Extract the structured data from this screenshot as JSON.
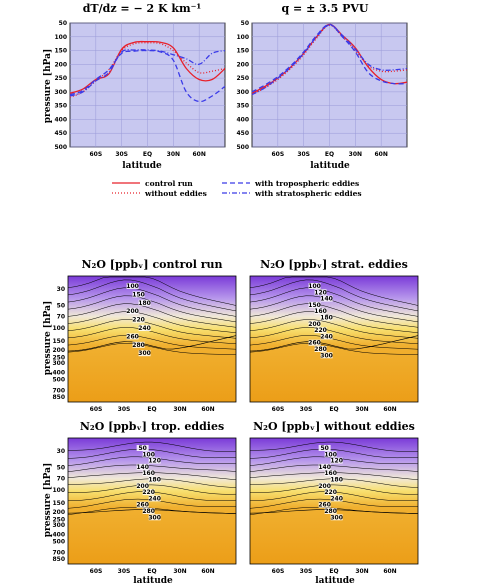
{
  "top_panels": [
    {
      "title": "dT/dz = − 2 K km⁻¹"
    },
    {
      "title": "q = ± 3.5 PVU"
    }
  ],
  "top_xlabel": "latitude",
  "top_ylabel": "pressure [hPa]",
  "top_yticks": [
    "50",
    "100",
    "150",
    "200",
    "250",
    "300",
    "350",
    "400",
    "450",
    "500"
  ],
  "top_xticks": [
    "60S",
    "30S",
    "EQ",
    "30N",
    "60N"
  ],
  "legend": [
    {
      "label": "control run",
      "color": "#e8202a",
      "dash": "solid"
    },
    {
      "label": "without eddies",
      "color": "#e8202a",
      "dash": "dot"
    },
    {
      "label": "with tropospheric eddies",
      "color": "#3a3ae8",
      "dash": "dash"
    },
    {
      "label": "with stratospheric eddies",
      "color": "#3a3ae8",
      "dash": "dashdot"
    }
  ],
  "bottom_panels": [
    {
      "title": "N₂O [ppbᵥ]  control run"
    },
    {
      "title": "N₂O [ppbᵥ] strat. eddies"
    },
    {
      "title": "N₂O [ppbᵥ]  trop. eddies"
    },
    {
      "title": "N₂O [ppbᵥ] without eddies"
    }
  ],
  "bottom_xlabel": "latitude",
  "bottom_ylabel": "pressure [hPa]",
  "bottom_yticks": [
    "30",
    "50",
    "70",
    "100",
    "150",
    "200",
    "250",
    "300",
    "400",
    "500",
    "700",
    "850"
  ],
  "bottom_xticks": [
    "60S",
    "30S",
    "EQ",
    "30N",
    "60N"
  ],
  "colors": {
    "panel_bg": "#c8c8f0",
    "grid": "#9a9ad8",
    "orange": "#f0a020",
    "purple": "#8a4ae0"
  },
  "chart_data": [
    {
      "type": "line",
      "title": "dT/dz = − 2 K km⁻¹",
      "xlabel": "latitude",
      "ylabel": "pressure [hPa]",
      "xlim": [
        -90,
        90
      ],
      "ylim": [
        500,
        50
      ],
      "x": [
        -90,
        -75,
        -60,
        -45,
        -30,
        -15,
        0,
        15,
        30,
        45,
        60,
        75,
        90
      ],
      "series": [
        {
          "name": "control run",
          "values": [
            305,
            290,
            255,
            235,
            145,
            120,
            118,
            120,
            140,
            215,
            255,
            255,
            215
          ]
        },
        {
          "name": "without eddies",
          "values": [
            320,
            300,
            260,
            220,
            150,
            125,
            122,
            125,
            150,
            195,
            230,
            225,
            215
          ]
        },
        {
          "name": "with tropospheric eddies",
          "values": [
            310,
            295,
            255,
            220,
            160,
            152,
            150,
            155,
            185,
            300,
            335,
            315,
            280
          ]
        },
        {
          "name": "with stratospheric eddies",
          "values": [
            315,
            300,
            260,
            230,
            155,
            148,
            148,
            152,
            165,
            180,
            200,
            160,
            150
          ]
        }
      ]
    },
    {
      "type": "line",
      "title": "q = ± 3.5 PVU",
      "xlabel": "latitude",
      "ylabel": "pressure [hPa]",
      "xlim": [
        -90,
        90
      ],
      "ylim": [
        500,
        50
      ],
      "x": [
        -90,
        -75,
        -60,
        -45,
        -30,
        -15,
        0,
        15,
        30,
        45,
        60,
        75,
        90
      ],
      "series": [
        {
          "name": "control run",
          "values": [
            305,
            280,
            250,
            210,
            160,
            100,
            55,
            95,
            140,
            210,
            255,
            270,
            265
          ]
        },
        {
          "name": "without eddies",
          "values": [
            310,
            285,
            255,
            215,
            165,
            105,
            58,
            100,
            150,
            205,
            225,
            225,
            220
          ]
        },
        {
          "name": "with tropospheric eddies",
          "values": [
            300,
            275,
            245,
            205,
            155,
            95,
            55,
            100,
            155,
            230,
            260,
            270,
            270
          ]
        },
        {
          "name": "with stratospheric eddies",
          "values": [
            310,
            285,
            250,
            210,
            160,
            100,
            57,
            95,
            145,
            200,
            220,
            220,
            215
          ]
        }
      ]
    },
    {
      "type": "heatmap",
      "title": "N₂O [ppbᵥ]  control run",
      "contour_labels": [
        "100",
        "150",
        "180",
        "200",
        "220",
        "240",
        "260",
        "280",
        "300"
      ]
    },
    {
      "type": "heatmap",
      "title": "N₂O [ppbᵥ] strat. eddies",
      "contour_labels": [
        "100",
        "120",
        "140",
        "150",
        "160",
        "180",
        "200",
        "220",
        "240",
        "260",
        "280",
        "300"
      ]
    },
    {
      "type": "heatmap",
      "title": "N₂O [ppbᵥ]  trop. eddies",
      "contour_labels": [
        "50",
        "100",
        "120",
        "140",
        "160",
        "180",
        "200",
        "220",
        "240",
        "260",
        "280",
        "300"
      ]
    },
    {
      "type": "heatmap",
      "title": "N₂O [ppbᵥ] without eddies",
      "contour_labels": [
        "50",
        "100",
        "120",
        "140",
        "160",
        "180",
        "200",
        "220",
        "240",
        "260",
        "280",
        "300"
      ]
    }
  ]
}
